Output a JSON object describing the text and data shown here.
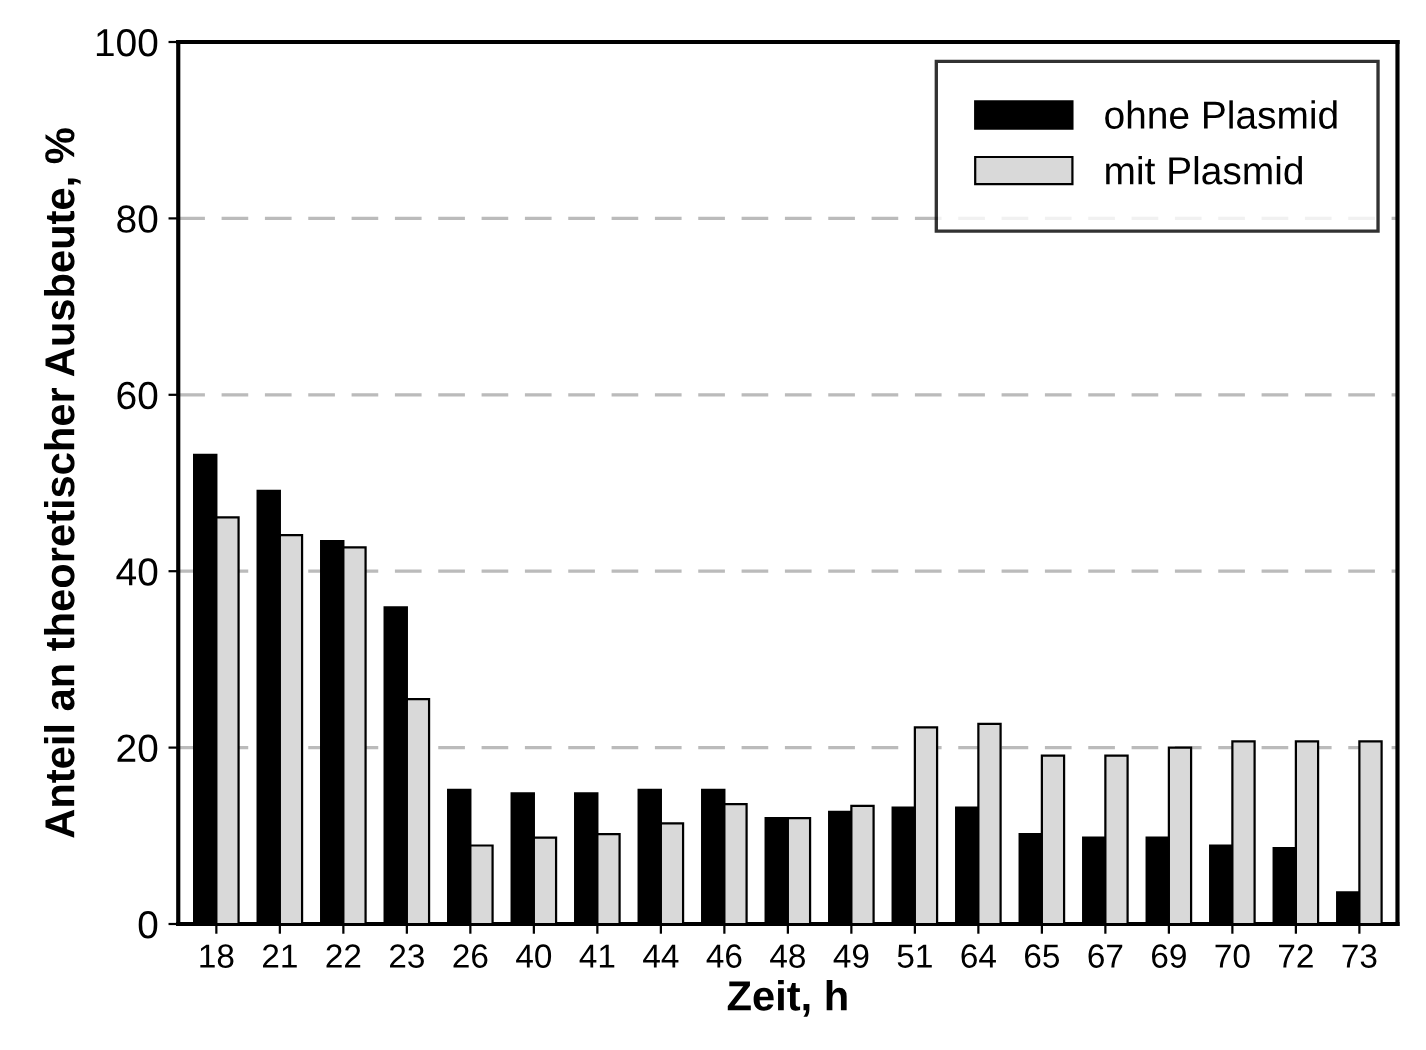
{
  "chart_data": {
    "type": "bar",
    "xlabel": "Zeit, h",
    "ylabel": "Anteil an theoretischer Ausbeute, %",
    "categories": [
      "18",
      "21",
      "22",
      "23",
      "26",
      "40",
      "41",
      "44",
      "46",
      "48",
      "49",
      "51",
      "64",
      "65",
      "67",
      "69",
      "70",
      "72",
      "73"
    ],
    "series": [
      {
        "name": "ohne Plasmid",
        "color": "#000000",
        "values": [
          53.2,
          49.1,
          43.4,
          35.9,
          15.2,
          14.8,
          14.8,
          15.2,
          15.2,
          12.0,
          12.7,
          13.2,
          13.2,
          10.2,
          9.8,
          9.8,
          8.9,
          8.6,
          3.6
        ]
      },
      {
        "name": "mit Plasmid",
        "color": "#d9d9d9",
        "values": [
          46.1,
          44.1,
          42.7,
          25.5,
          8.9,
          9.8,
          10.2,
          11.4,
          13.6,
          12.0,
          13.4,
          22.3,
          22.7,
          19.1,
          19.1,
          20.0,
          20.7,
          20.7,
          20.7
        ]
      }
    ],
    "ylim": [
      0,
      100
    ],
    "yticks": [
      0,
      20,
      40,
      60,
      80,
      100
    ],
    "grid": "y",
    "line_style": "dashed",
    "legend": "top right"
  }
}
